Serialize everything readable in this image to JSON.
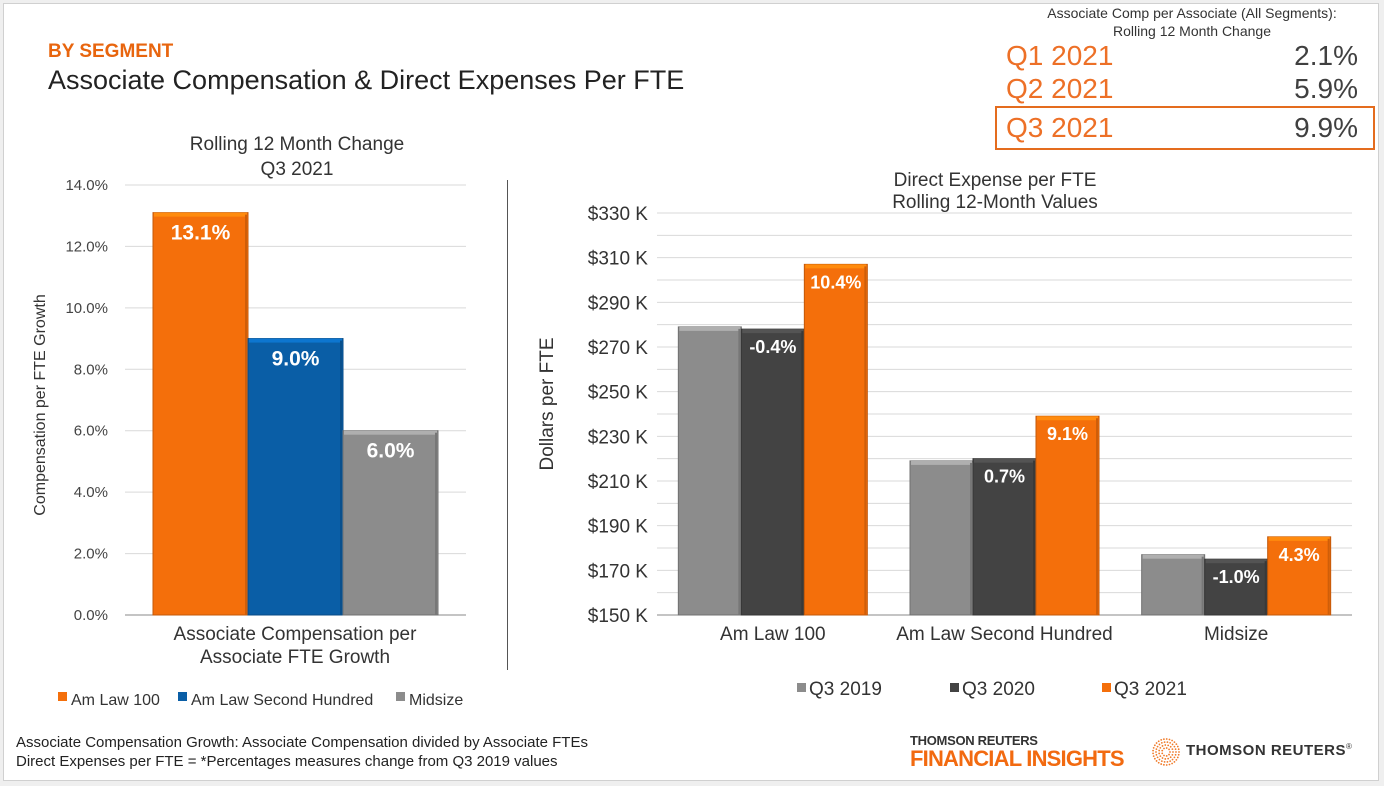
{
  "header": {
    "kicker": "BY SEGMENT",
    "title": "Associate Compensation & Direct Expenses Per FTE"
  },
  "kpi": {
    "heading_line1": "Associate Comp per Associate (All Segments):",
    "heading_line2": "Rolling 12 Month Change",
    "rows": [
      {
        "quarter": "Q1 2021",
        "value": "2.1%"
      },
      {
        "quarter": "Q2 2021",
        "value": "5.9%"
      },
      {
        "quarter": "Q3 2021",
        "value": "9.9%",
        "highlighted": true
      }
    ]
  },
  "colors": {
    "orange": "#f46f0b",
    "blue": "#0a5ea6",
    "gray": "#8c8c8c",
    "dark_gray": "#434343",
    "accent_text": "#e8650e"
  },
  "footer": {
    "line1": "Associate Compensation Growth: Associate Compensation divided by Associate FTEs",
    "line2": "Direct Expenses per FTE = *Percentages measures change from Q3 2019 values"
  },
  "logos": {
    "financial_insights_top": "THOMSON REUTERS",
    "financial_insights_bottom": "FINANCIAL INSIGHTS",
    "thomson_reuters": "THOMSON REUTERS",
    "registered": "®"
  },
  "chart_data": [
    {
      "type": "bar",
      "title": "Rolling 12 Month Change\nQ3 2021",
      "title_lines": [
        "Rolling 12 Month Change",
        "Q3 2021"
      ],
      "xlabel": "",
      "ylabel": "Compensation per FTE Growth",
      "categories": [
        "Associate Compensation per Associate FTE Growth"
      ],
      "category_lines": [
        "Associate Compensation per",
        "Associate FTE Growth"
      ],
      "series": [
        {
          "name": "Am Law 100",
          "values": [
            13.1
          ],
          "label": "13.1%",
          "color": "#f46f0b"
        },
        {
          "name": "Am Law Second Hundred",
          "values": [
            9.0
          ],
          "label": "9.0%",
          "color": "#0a5ea6"
        },
        {
          "name": "Midsize",
          "values": [
            6.0
          ],
          "label": "6.0%",
          "color": "#8c8c8c"
        }
      ],
      "ylim": [
        0,
        14
      ],
      "yticks": [
        0,
        2,
        4,
        6,
        8,
        10,
        12,
        14
      ],
      "ytick_labels": [
        "0.0%",
        "2.0%",
        "4.0%",
        "6.0%",
        "8.0%",
        "10.0%",
        "12.0%",
        "14.0%"
      ],
      "grid": true,
      "legend": "bottom"
    },
    {
      "type": "bar",
      "title": "Direct Expense per FTE\nRolling 12-Month Values",
      "title_lines": [
        "Direct Expense per FTE",
        "Rolling 12-Month Values"
      ],
      "xlabel": "",
      "ylabel": "Dollars per FTE",
      "categories": [
        "Am Law 100",
        "Am Law Second Hundred",
        "Midsize"
      ],
      "series": [
        {
          "name": "Q3 2019",
          "values": [
            279,
            219,
            177
          ],
          "labels": [
            "",
            "",
            ""
          ],
          "color": "#8c8c8c"
        },
        {
          "name": "Q3 2020",
          "values": [
            278,
            220,
            175
          ],
          "labels": [
            "-0.4%",
            "0.7%",
            "-1.0%"
          ],
          "color": "#434343"
        },
        {
          "name": "Q3 2021",
          "values": [
            307,
            239,
            185
          ],
          "labels": [
            "10.4%",
            "9.1%",
            "4.3%"
          ],
          "color": "#f46f0b"
        }
      ],
      "units": "thousands USD",
      "ylim": [
        150,
        330
      ],
      "yticks": [
        150,
        170,
        190,
        210,
        230,
        250,
        270,
        290,
        310,
        330
      ],
      "ytick_labels": [
        "$150 K",
        "$170 K",
        "$190 K",
        "$210 K",
        "$230 K",
        "$250 K",
        "$270 K",
        "$290 K",
        "$310 K",
        "$330 K"
      ],
      "minor_grid_step": 10,
      "grid": true,
      "legend": "bottom"
    }
  ]
}
